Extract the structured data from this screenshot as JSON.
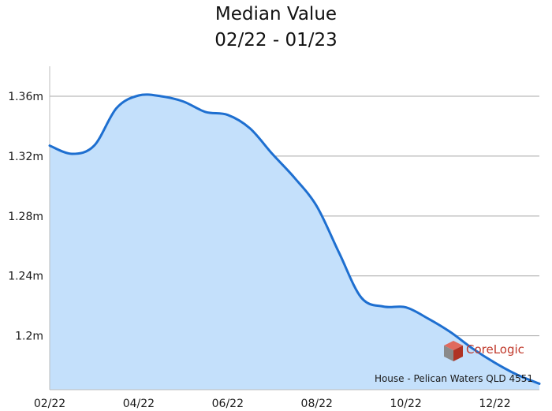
{
  "chart_data": {
    "type": "area",
    "title_lines": [
      "Median Value",
      "02/22 - 01/23"
    ],
    "xlabel": "",
    "ylabel": "",
    "x_tick_labels": [
      "02/22",
      "04/22",
      "06/22",
      "08/22",
      "10/22",
      "12/22"
    ],
    "y_tick_labels": [
      "1.36m",
      "1.32m",
      "1.28m",
      "1.24m",
      "1.2m"
    ],
    "y_ticks": [
      1.36,
      1.32,
      1.28,
      1.24,
      1.2
    ],
    "ylim": [
      1.164,
      1.38
    ],
    "x_index_range": [
      0,
      11
    ],
    "grid": "horizontal",
    "series": [
      {
        "x": [
          0,
          0.5,
          1,
          1.5,
          2,
          2.5,
          3,
          3.5,
          4,
          4.5,
          5,
          5.5,
          6,
          6.5,
          7,
          7.5,
          8,
          8.5,
          9,
          9.5,
          10,
          10.5,
          11
        ],
        "values": [
          1.327,
          1.3215,
          1.327,
          1.352,
          1.3605,
          1.36,
          1.3565,
          1.3495,
          1.3475,
          1.3385,
          1.3215,
          1.3055,
          1.2865,
          1.2555,
          1.2255,
          1.2195,
          1.219,
          1.2115,
          1.2025,
          1.1915,
          1.182,
          1.174,
          1.168
        ]
      }
    ],
    "source_label": "House - Pelican Waters QLD 4551",
    "colors": {
      "line": "#1e6fd0",
      "fill": "#c4e0fb",
      "grid": "#a8a8a8",
      "axis": "#bdbdbd"
    }
  },
  "branding": {
    "logo_text": "CoreLogic",
    "logo_color": "#c0392b",
    "logo_icon": "corelogic-cube-icon"
  }
}
